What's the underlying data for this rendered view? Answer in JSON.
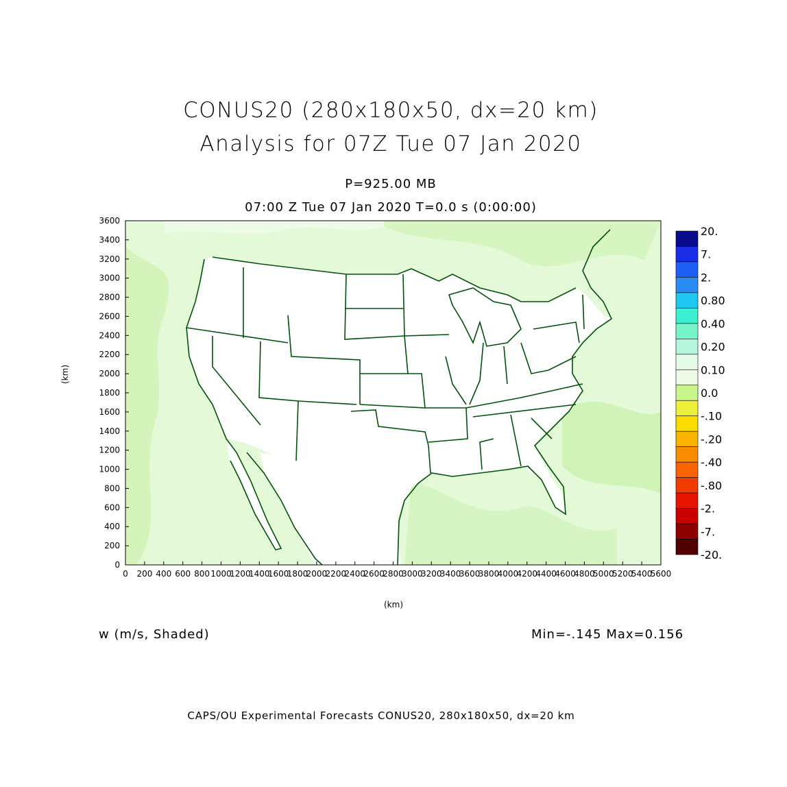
{
  "title": {
    "line1": "CONUS20 (280x180x50, dx=20 km)",
    "line2": "Analysis for 07Z Tue 07 Jan 2020"
  },
  "level_label": "P=925.00 MB",
  "time_label": "07:00 Z Tue 07 Jan 2020   T=0.0 s (0:00:00)",
  "variable_label": "w (m/s, Shaded)",
  "minmax_label": "Min=-.145 Max=0.156",
  "footer": "CAPS/OU Experimental Forecasts  CONUS20, 280x180x50, dx=20 km",
  "chart_data": {
    "type": "heatmap",
    "xlabel": "(km)",
    "ylabel": "(km)",
    "xlim": [
      0,
      5600
    ],
    "ylim": [
      0,
      3600
    ],
    "x_ticks": [
      "0",
      "200",
      "400",
      "600",
      "800",
      "1000",
      "1200",
      "1400",
      "1600",
      "1800",
      "2000",
      "2200",
      "2400",
      "2600",
      "2800",
      "3000",
      "3200",
      "3400",
      "3600",
      "3800",
      "4000",
      "4200",
      "4400",
      "4600",
      "4800",
      "5000",
      "5200",
      "5400",
      "5600"
    ],
    "y_ticks": [
      "0",
      "200",
      "400",
      "600",
      "800",
      "1000",
      "1200",
      "1400",
      "1600",
      "1800",
      "2000",
      "2200",
      "2400",
      "2600",
      "2800",
      "3000",
      "3200",
      "3400",
      "3600"
    ],
    "colorbar": {
      "labels": [
        "20.",
        "7.",
        "2.",
        "0.80",
        "0.40",
        "0.20",
        "0.10",
        "0.0",
        "-.10",
        "-.20",
        "-.40",
        "-.80",
        "-2.",
        "-7.",
        "-20."
      ],
      "colors": [
        "#0a0a8c",
        "#1a2ee6",
        "#1e5ef5",
        "#2a8cf5",
        "#1ec8f0",
        "#3ceed2",
        "#78f5c8",
        "#b4f5dc",
        "#e6fae8",
        "#f0fae6",
        "#c8f58c",
        "#ecf03c",
        "#fadc00",
        "#fab400",
        "#fa8c00",
        "#fa6400",
        "#f03c00",
        "#e61400",
        "#c80000",
        "#8c0000",
        "#500000"
      ]
    },
    "map_colors": {
      "land_fill": "#ffffff",
      "field_fill": "#e6fae0",
      "field_fill_alt": "#d2f5b8",
      "boundary": "#00500a"
    }
  }
}
